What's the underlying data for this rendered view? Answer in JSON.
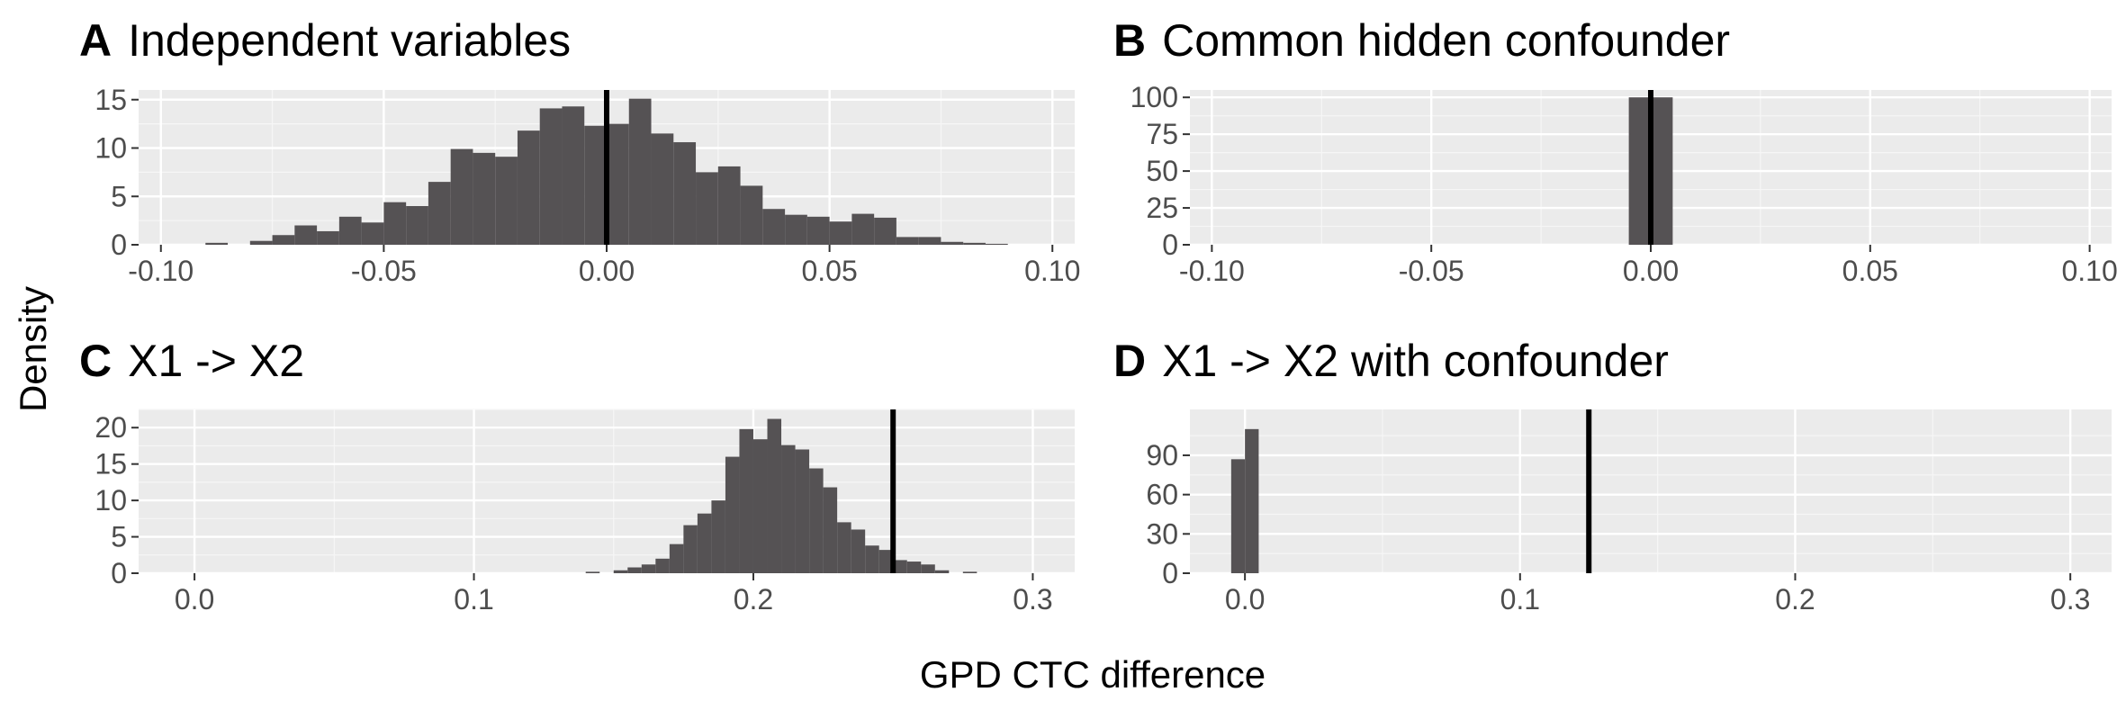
{
  "figure": {
    "ylabel": "Density",
    "xlabel": "GPD CTC difference"
  },
  "chart_data": [
    {
      "id": "A",
      "type": "bar",
      "letter": "A",
      "title": "Independent variables",
      "xlim": [
        -0.105,
        0.105
      ],
      "ylim": [
        0,
        16
      ],
      "xticks": [
        -0.1,
        -0.05,
        0.0,
        0.05,
        0.1
      ],
      "xtick_labels": [
        "-0.10",
        "-0.05",
        "0.00",
        "0.05",
        "0.10"
      ],
      "yticks": [
        0,
        5,
        10,
        15
      ],
      "bin_width": 0.005,
      "bins": [
        [
          -0.0875,
          0.2
        ],
        [
          -0.0775,
          0.4
        ],
        [
          -0.0725,
          1.0
        ],
        [
          -0.0675,
          2.0
        ],
        [
          -0.0625,
          1.4
        ],
        [
          -0.0575,
          2.9
        ],
        [
          -0.0525,
          2.3
        ],
        [
          -0.0475,
          4.4
        ],
        [
          -0.0425,
          4.0
        ],
        [
          -0.0375,
          6.5
        ],
        [
          -0.0325,
          9.9
        ],
        [
          -0.0275,
          9.5
        ],
        [
          -0.0225,
          9.1
        ],
        [
          -0.0175,
          11.8
        ],
        [
          -0.0125,
          14.1
        ],
        [
          -0.0075,
          14.3
        ],
        [
          -0.0025,
          12.3
        ],
        [
          0.0025,
          12.5
        ],
        [
          0.0075,
          15.1
        ],
        [
          0.0125,
          11.5
        ],
        [
          0.0175,
          10.6
        ],
        [
          0.0225,
          7.5
        ],
        [
          0.0275,
          8.1
        ],
        [
          0.0325,
          6.1
        ],
        [
          0.0375,
          3.7
        ],
        [
          0.0425,
          3.1
        ],
        [
          0.0475,
          2.9
        ],
        [
          0.0525,
          2.4
        ],
        [
          0.0575,
          3.2
        ],
        [
          0.0625,
          2.8
        ],
        [
          0.0675,
          0.8
        ],
        [
          0.0725,
          0.8
        ],
        [
          0.0775,
          0.3
        ],
        [
          0.0825,
          0.2
        ],
        [
          0.0875,
          0.1
        ]
      ],
      "vline": 0.0
    },
    {
      "id": "B",
      "type": "bar",
      "letter": "B",
      "title": "Common hidden confounder",
      "xlim": [
        -0.105,
        0.105
      ],
      "ylim": [
        0,
        105
      ],
      "xticks": [
        -0.1,
        -0.05,
        0.0,
        0.05,
        0.1
      ],
      "xtick_labels": [
        "-0.10",
        "-0.05",
        "0.00",
        "0.05",
        "0.10"
      ],
      "yticks": [
        0,
        25,
        50,
        75,
        100
      ],
      "bin_width": 0.005,
      "bins": [
        [
          -0.0025,
          100
        ],
        [
          0.0025,
          100
        ]
      ],
      "vline": 0.0
    },
    {
      "id": "C",
      "type": "bar",
      "letter": "C",
      "title": "X1 -> X2",
      "xlim": [
        -0.02,
        0.315
      ],
      "ylim": [
        0,
        22.5
      ],
      "xticks": [
        0.0,
        0.1,
        0.2,
        0.3
      ],
      "xtick_labels": [
        "0.0",
        "0.1",
        "0.2",
        "0.3"
      ],
      "yticks": [
        0,
        5,
        10,
        15,
        20
      ],
      "bin_width": 0.005,
      "bins": [
        [
          0.1425,
          0.2
        ],
        [
          0.1525,
          0.4
        ],
        [
          0.1575,
          0.8
        ],
        [
          0.1625,
          1.2
        ],
        [
          0.1675,
          2.0
        ],
        [
          0.1725,
          4.0
        ],
        [
          0.1775,
          6.6
        ],
        [
          0.1825,
          8.2
        ],
        [
          0.1875,
          10.0
        ],
        [
          0.1925,
          16.0
        ],
        [
          0.1975,
          19.8
        ],
        [
          0.2025,
          18.4
        ],
        [
          0.2075,
          21.2
        ],
        [
          0.2125,
          17.6
        ],
        [
          0.2175,
          17.0
        ],
        [
          0.2225,
          14.4
        ],
        [
          0.2275,
          11.8
        ],
        [
          0.2325,
          7.0
        ],
        [
          0.2375,
          6.0
        ],
        [
          0.2425,
          3.8
        ],
        [
          0.2475,
          3.2
        ],
        [
          0.2525,
          1.8
        ],
        [
          0.2575,
          1.6
        ],
        [
          0.2625,
          1.2
        ],
        [
          0.2675,
          0.4
        ],
        [
          0.2775,
          0.2
        ]
      ],
      "vline": 0.25
    },
    {
      "id": "D",
      "type": "bar",
      "letter": "D",
      "title": "X1 -> X2 with confounder",
      "xlim": [
        -0.02,
        0.315
      ],
      "ylim": [
        0,
        125
      ],
      "xticks": [
        0.0,
        0.1,
        0.2,
        0.3
      ],
      "xtick_labels": [
        "0.0",
        "0.1",
        "0.2",
        "0.3"
      ],
      "yticks": [
        0,
        30,
        60,
        90
      ],
      "bin_width": 0.005,
      "bins": [
        [
          -0.0025,
          87
        ],
        [
          0.0025,
          110
        ]
      ],
      "vline": 0.125
    }
  ]
}
